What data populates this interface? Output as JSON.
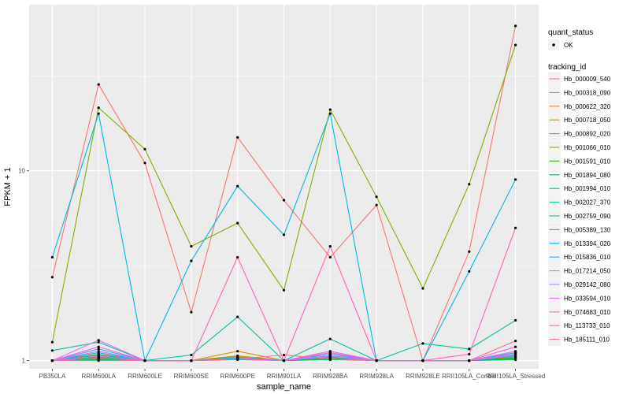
{
  "chart_data": {
    "type": "line",
    "xlabel": "sample_name",
    "ylabel": "FPKM + 1",
    "y_scale": "log10",
    "y_ticks": [
      1,
      10
    ],
    "y_tick_labels": [
      "1",
      "10"
    ],
    "ylim": [
      0.905,
      75
    ],
    "grid": true,
    "background": "#ebebeb",
    "legend_placement": "right",
    "categories": [
      "PB350LA",
      "RRIM600LA",
      "RRIM600LE",
      "RRIM600SE",
      "RRIM600PE",
      "RRIM901LA",
      "RRIM928BA",
      "RRIM928LA",
      "RRIM928LE",
      "RRII105LA_Control",
      "RRII105LA_Stressed"
    ],
    "legend_quant": {
      "title": "quant_status",
      "entries": [
        "OK"
      ]
    },
    "legend_tracking": {
      "title": "tracking_id"
    },
    "series": [
      {
        "name": "Hb_000009_540",
        "color": "#F8766D",
        "values": [
          2.75,
          28.5,
          11.0,
          1.8,
          15.0,
          7.0,
          3.5,
          6.6,
          1.0,
          3.75,
          58.0
        ]
      },
      {
        "name": "Hb_000318_090",
        "color": "#EB8335",
        "values": [
          1.0,
          1.05,
          1.0,
          1.0,
          1.05,
          1.0,
          1.1,
          1.0,
          1.0,
          1.0,
          1.1
        ]
      },
      {
        "name": "Hb_000622_320",
        "color": "#D89000",
        "values": [
          1.0,
          1.08,
          1.0,
          1.0,
          1.12,
          1.0,
          1.05,
          1.0,
          1.0,
          1.0,
          1.1
        ]
      },
      {
        "name": "Hb_000718_050",
        "color": "#C09B00",
        "values": [
          1.0,
          1.02,
          1.0,
          1.0,
          1.03,
          1.0,
          1.03,
          1.0,
          1.0,
          1.0,
          1.04
        ]
      },
      {
        "name": "Hb_000892_020",
        "color": "#A3A500",
        "values": [
          1.0,
          1.03,
          1.0,
          1.0,
          1.06,
          1.0,
          1.05,
          1.0,
          1.0,
          1.0,
          1.05
        ]
      },
      {
        "name": "Hb_001066_010",
        "color": "#7CAE00",
        "values": [
          1.25,
          21.5,
          13.0,
          4.0,
          5.3,
          2.35,
          21.0,
          7.3,
          2.4,
          8.5,
          46.0
        ]
      },
      {
        "name": "Hb_001591_010",
        "color": "#39B600",
        "values": [
          1.0,
          1.02,
          1.0,
          1.0,
          1.02,
          1.0,
          1.02,
          1.0,
          1.0,
          1.0,
          1.02
        ]
      },
      {
        "name": "Hb_001894_080",
        "color": "#00BB4E",
        "values": [
          1.0,
          1.04,
          1.0,
          1.0,
          1.03,
          1.0,
          1.04,
          1.0,
          1.0,
          1.0,
          1.03
        ]
      },
      {
        "name": "Hb_001994_010",
        "color": "#00BF7D",
        "values": [
          1.0,
          1.01,
          1.0,
          1.0,
          1.01,
          1.0,
          1.01,
          1.0,
          1.0,
          1.0,
          1.01
        ]
      },
      {
        "name": "Hb_002027_370",
        "color": "#00C1A3",
        "values": [
          1.13,
          1.25,
          1.0,
          1.07,
          1.7,
          1.0,
          1.3,
          1.0,
          1.23,
          1.15,
          1.63
        ]
      },
      {
        "name": "Hb_002759_090",
        "color": "#00BFC4",
        "values": [
          1.0,
          1.1,
          1.0,
          1.0,
          1.04,
          1.0,
          1.08,
          1.0,
          1.0,
          1.0,
          1.06
        ]
      },
      {
        "name": "Hb_005389_130",
        "color": "#00B8E7",
        "values": [
          3.5,
          20.0,
          1.0,
          3.35,
          8.3,
          4.6,
          20.0,
          1.0,
          1.0,
          2.95,
          9.0
        ]
      },
      {
        "name": "Hb_013394_020",
        "color": "#00A9FF",
        "values": [
          1.0,
          1.07,
          1.0,
          1.0,
          1.02,
          1.0,
          1.06,
          1.0,
          1.0,
          1.0,
          1.08
        ]
      },
      {
        "name": "Hb_015836_010",
        "color": "#35A2FF",
        "values": [
          1.0,
          1.15,
          1.0,
          1.0,
          1.03,
          1.0,
          1.08,
          1.0,
          1.0,
          1.0,
          1.1
        ]
      },
      {
        "name": "Hb_017214_050",
        "color": "#9590FF",
        "values": [
          1.0,
          1.06,
          1.0,
          1.0,
          1.02,
          1.0,
          1.05,
          1.0,
          1.0,
          1.0,
          1.07
        ]
      },
      {
        "name": "Hb_029142_080",
        "color": "#C77CFF",
        "values": [
          1.0,
          1.12,
          1.0,
          1.0,
          1.02,
          1.0,
          1.06,
          1.0,
          1.0,
          1.0,
          1.08
        ]
      },
      {
        "name": "Hb_033594_010",
        "color": "#E76BF3",
        "values": [
          1.0,
          1.28,
          1.0,
          1.0,
          1.02,
          1.0,
          1.12,
          1.0,
          1.0,
          1.0,
          1.12
        ]
      },
      {
        "name": "Hb_074683_010",
        "color": "#FA62DB",
        "values": [
          1.0,
          1.18,
          1.0,
          1.0,
          1.02,
          1.0,
          1.1,
          1.0,
          1.0,
          1.0,
          1.18
        ]
      },
      {
        "name": "Hb_113733_010",
        "color": "#FF62BC",
        "values": [
          1.0,
          1.0,
          1.0,
          1.0,
          3.5,
          1.0,
          4.0,
          1.0,
          1.0,
          1.08,
          5.0
        ]
      },
      {
        "name": "Hb_185111_010",
        "color": "#FF6C91",
        "values": [
          1.0,
          1.03,
          1.0,
          1.0,
          1.02,
          1.07,
          1.02,
          1.0,
          1.0,
          1.0,
          1.27
        ]
      }
    ]
  }
}
